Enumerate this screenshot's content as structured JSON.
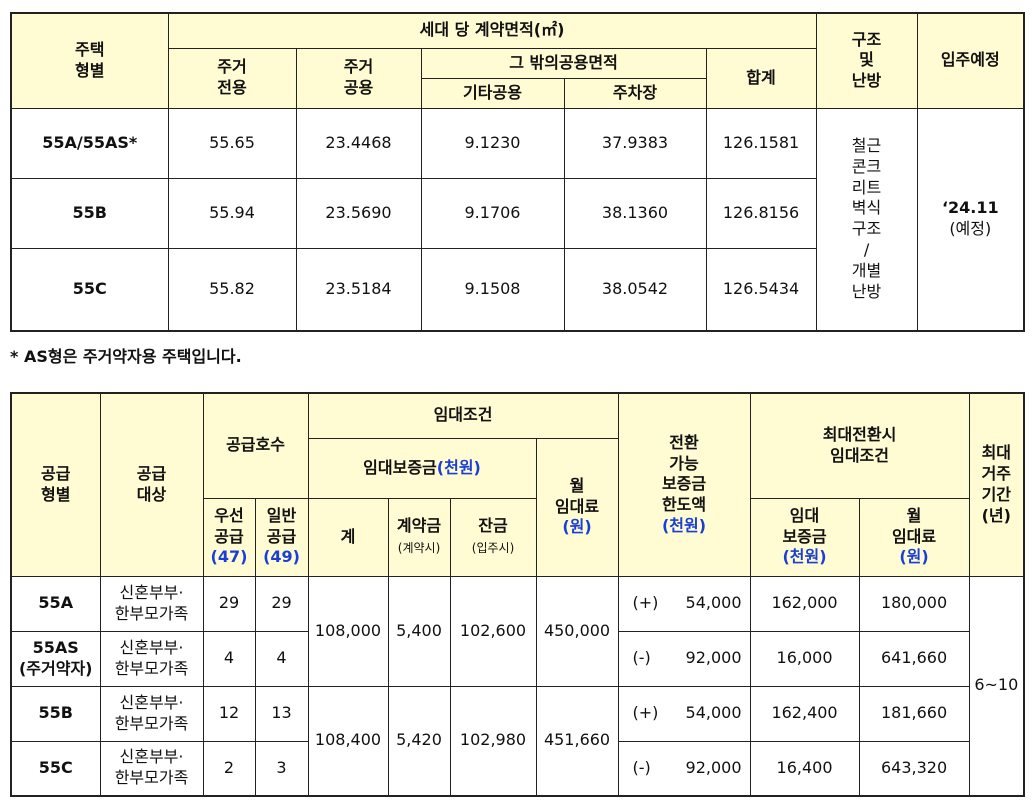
{
  "table1": {
    "header": {
      "type": "주택\n형별",
      "area": "세대 당 계약면적(㎡)",
      "exclusive": "주거\n전용",
      "common": "주거\n공용",
      "other_common": "그 밖의공용면적",
      "etc_common": "기타공용",
      "parking": "주차장",
      "total": "합계",
      "structure": "구조\n및\n난방",
      "move_in": "입주예정"
    },
    "rows": [
      {
        "type": "55A/55AS*",
        "exclusive": "55.65",
        "common": "23.4468",
        "etc_common": "9.1230",
        "parking": "37.9383",
        "total": "126.1581",
        "structure": "철근\n콘크\n리트\n벽식\n구조\n/\n개별\n난방",
        "move_in": "‘24.11",
        "move_in_note": "(예정)"
      },
      {
        "type": "55B",
        "exclusive": "55.94",
        "common": "23.5690",
        "etc_common": "9.1706",
        "parking": "38.1360",
        "total": "126.8156"
      },
      {
        "type": "55C",
        "exclusive": "55.82",
        "common": "23.5184",
        "etc_common": "9.1508",
        "parking": "38.0542",
        "total": "126.5434"
      }
    ]
  },
  "note": "* AS형은 주거약자용 주택입니다.",
  "table2": {
    "header": {
      "supply_type": "공급\n형별",
      "supply_target": "공급\n대상",
      "units": "공급호수",
      "lease_terms": "임대조건",
      "deposit": "임대보증금",
      "deposit_unit": "(천원)",
      "monthly_rent": "월\n임대료",
      "monthly_rent_unit": "(원)",
      "priority": "우선\n공급",
      "priority_count": "(47)",
      "general": "일반\n공급",
      "general_count": "(49)",
      "total": "계",
      "down_payment": "계약금",
      "down_payment_note": "(계약시)",
      "balance": "잔금",
      "balance_note": "(입주시)",
      "convertible": "전환\n가능\n보증금\n한도액",
      "convertible_unit": "(천원)",
      "max_conversion": "최대전환시\n임대조건",
      "max_deposit": "임대\n보증금",
      "max_deposit_unit": "(천원)",
      "max_rent": "월\n임대료",
      "max_rent_unit": "(원)",
      "max_period": "최대\n거주\n기간",
      "max_period_unit": "(년)"
    },
    "rows": [
      {
        "type": "55A",
        "target": "신혼부부·\n한부모가족",
        "priority": "29",
        "general": "29",
        "deposit": "108,000",
        "down_payment": "5,400",
        "balance": "102,600",
        "rent": "450,000",
        "conv_sign": "(+)",
        "conv_amount": "54,000",
        "max_deposit": "162,000",
        "max_rent": "180,000",
        "period": "6~10"
      },
      {
        "type": "55AS\n(주거약자)",
        "target": "신혼부부·\n한부모가족",
        "priority": "4",
        "general": "4",
        "conv_sign": "(-)",
        "conv_amount": "92,000",
        "max_deposit": "16,000",
        "max_rent": "641,660"
      },
      {
        "type": "55B",
        "target": "신혼부부·\n한부모가족",
        "priority": "12",
        "general": "13",
        "deposit": "108,400",
        "down_payment": "5,420",
        "balance": "102,980",
        "rent": "451,660",
        "conv_sign": "(+)",
        "conv_amount": "54,000",
        "max_deposit": "162,400",
        "max_rent": "181,660"
      },
      {
        "type": "55C",
        "target": "신혼부부·\n한부모가족",
        "priority": "2",
        "general": "3",
        "conv_sign": "(-)",
        "conv_amount": "92,000",
        "max_deposit": "16,400",
        "max_rent": "643,320"
      }
    ]
  }
}
